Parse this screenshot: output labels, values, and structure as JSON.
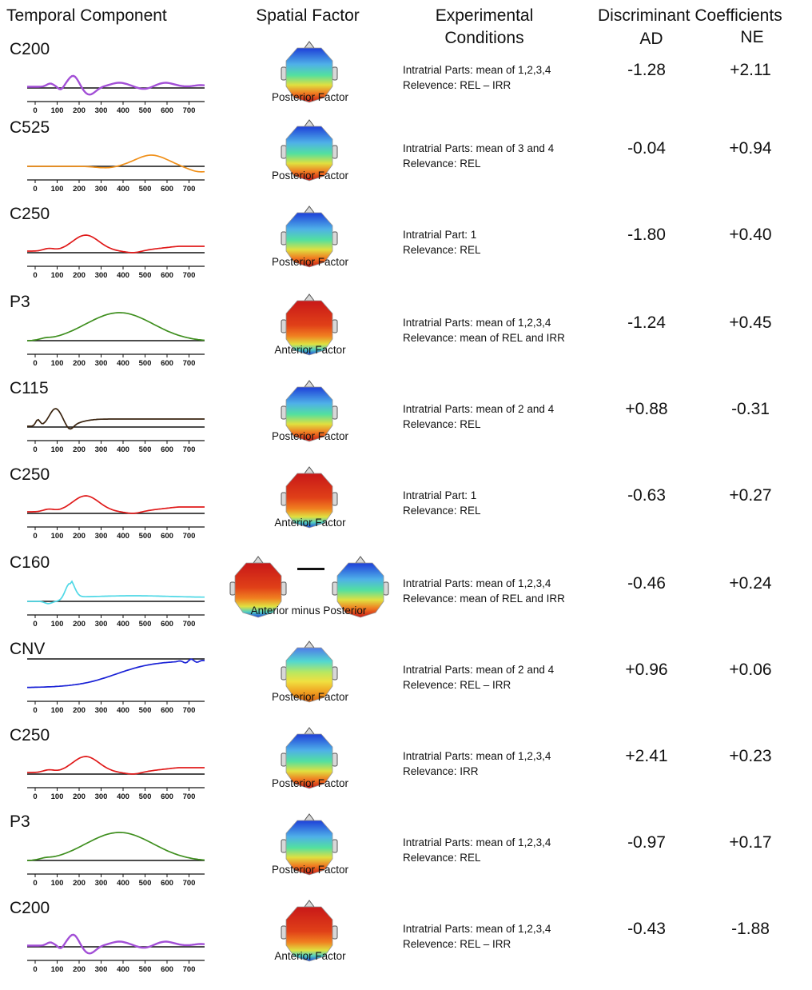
{
  "headers": {
    "temporal": "Temporal Component",
    "spatial": "Spatial Factor",
    "conditions_line1": "Experimental",
    "conditions_line2": "Conditions",
    "discriminant": "Discriminant Coefficients",
    "ad": "AD",
    "ne": "NE"
  },
  "axis_ticks": [
    "0",
    "100",
    "200",
    "300",
    "400",
    "500",
    "600",
    "700"
  ],
  "rows": [
    {
      "component": "C200",
      "color": "#a24fd6",
      "wave": "c200",
      "spatial": "Posterior Factor",
      "map": "posterior",
      "cond1": "Intratrial Parts: mean of 1,2,3,4",
      "cond2": "Relevence: REL – IRR",
      "ad": "-1.28",
      "ne": "+2.11"
    },
    {
      "component": "C525",
      "color": "#f0901a",
      "wave": "c525",
      "spatial": "Posterior Factor",
      "map": "posterior",
      "cond1": "Intratrial Parts: mean of 3 and 4",
      "cond2": "Relevance: REL",
      "ad": "-0.04",
      "ne": "+0.94"
    },
    {
      "component": "C250",
      "color": "#e01b1b",
      "wave": "c250",
      "spatial": "Posterior Factor",
      "map": "posterior",
      "cond1": "Intratrial Part: 1",
      "cond2": "Relevance: REL",
      "ad": "-1.80",
      "ne": "+0.40"
    },
    {
      "component": "P3",
      "color": "#3f8f1f",
      "wave": "p3",
      "spatial": "Anterior Factor",
      "map": "anterior",
      "cond1": "Intratrial Parts: mean of 1,2,3,4",
      "cond2": "Relevance: mean of REL and IRR",
      "ad": "-1.24",
      "ne": "+0.45"
    },
    {
      "component": "C115",
      "color": "#3a2410",
      "wave": "c115",
      "spatial": "Posterior Factor",
      "map": "posterior",
      "cond1": "Intratrial Parts: mean of 2 and 4",
      "cond2": "Relevance: REL",
      "ad": "+0.88",
      "ne": "-0.31"
    },
    {
      "component": "C250",
      "color": "#e01b1b",
      "wave": "c250",
      "spatial": "Anterior Factor",
      "map": "anterior",
      "cond1": "Intratrial Part: 1",
      "cond2": "Relevance: REL",
      "ad": "-0.63",
      "ne": "+0.27"
    },
    {
      "component": "C160",
      "color": "#4fd8e6",
      "wave": "c160",
      "spatial": "Anterior minus Posterior",
      "map": "diff",
      "cond1": "Intratrial Parts: mean of 1,2,3,4",
      "cond2": "Relevance: mean of REL and IRR",
      "ad": "-0.46",
      "ne": "+0.24"
    },
    {
      "component": "CNV",
      "color": "#1a22d6",
      "wave": "cnv",
      "spatial": "Posterior Factor",
      "map": "posterior_cnv",
      "cond1": "Intratrial Parts: mean of 2 and 4",
      "cond2": "Relevence: REL – IRR",
      "ad": "+0.96",
      "ne": "+0.06"
    },
    {
      "component": "C250",
      "color": "#e01b1b",
      "wave": "c250",
      "spatial": "Posterior Factor",
      "map": "posterior",
      "cond1": "Intratrial Parts: mean of 1,2,3,4",
      "cond2": "Relevance: IRR",
      "ad": "+2.41",
      "ne": "+0.23"
    },
    {
      "component": "P3",
      "color": "#3f8f1f",
      "wave": "p3",
      "spatial": "Posterior Factor",
      "map": "posterior",
      "cond1": "Intratrial Parts: mean of 1,2,3,4",
      "cond2": "Relevance: REL",
      "ad": "-0.97",
      "ne": "+0.17"
    },
    {
      "component": "C200",
      "color": "#a24fd6",
      "wave": "c200",
      "spatial": "Anterior Factor",
      "map": "anterior",
      "cond1": "Intratrial Parts: mean of 1,2,3,4",
      "cond2": "Relevence: REL – IRR",
      "ad": "-0.43",
      "ne": "-1.88"
    }
  ]
}
